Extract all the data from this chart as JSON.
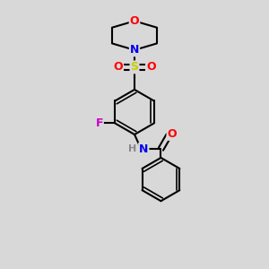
{
  "bg_color": "#d8d8d8",
  "bond_color": "#000000",
  "atom_colors": {
    "O": "#ff0000",
    "N": "#0000ee",
    "S": "#cccc00",
    "F": "#cc00cc",
    "H": "#888888"
  },
  "figsize": [
    3.0,
    3.0
  ],
  "dpi": 100,
  "xlim": [
    0,
    10
  ],
  "ylim": [
    0,
    10
  ]
}
